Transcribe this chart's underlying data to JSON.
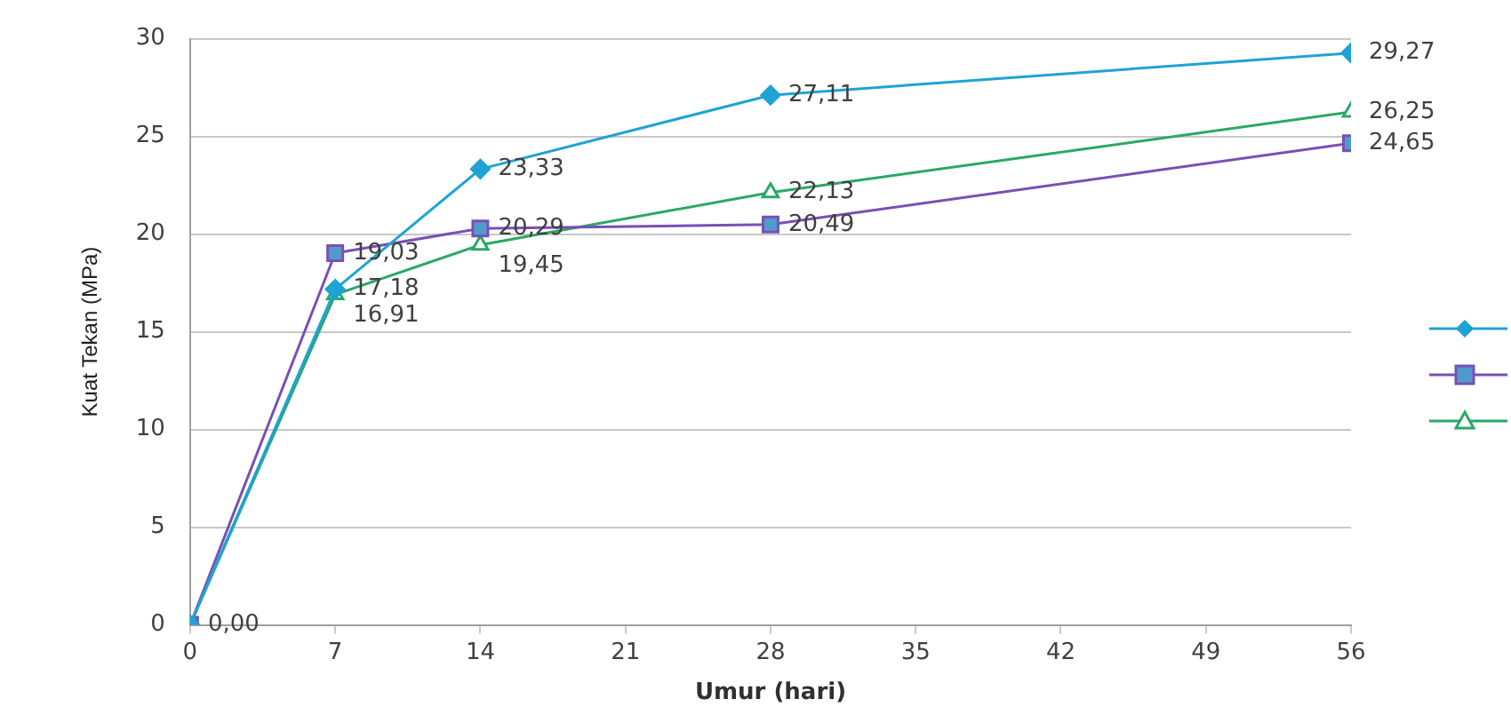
{
  "chart_data": {
    "type": "line",
    "xlabel": "Umur (hari)",
    "ylabel": "Kuat Tekan (MPa)",
    "x": [
      0,
      7,
      14,
      28,
      56
    ],
    "xlim": [
      0,
      56
    ],
    "xticks": [
      0,
      7,
      14,
      21,
      28,
      35,
      42,
      49,
      56
    ],
    "ylim": [
      0,
      30
    ],
    "yticks": [
      0,
      5,
      10,
      15,
      20,
      25,
      30
    ],
    "grid": "y",
    "line_style": "solid",
    "series": [
      {
        "color": "#1fa3d4",
        "marker": "diamond",
        "values": [
          0,
          17.18,
          23.33,
          27.11,
          29.27
        ],
        "value_labels": [
          "0,00",
          "17,18",
          "23,33",
          "27,11",
          "29,27"
        ]
      },
      {
        "color": "#7b4fb5",
        "marker": "square",
        "values": [
          0,
          19.03,
          20.29,
          20.49,
          24.65
        ],
        "value_labels": [
          null,
          "19,03",
          "20,29",
          "20,49",
          "24,65"
        ]
      },
      {
        "color": "#2aa866",
        "marker": "triangle",
        "values": [
          0,
          16.91,
          19.45,
          22.13,
          26.25
        ],
        "value_labels": [
          null,
          "16,91",
          "19,45",
          "22,13",
          "26,25"
        ]
      }
    ]
  }
}
